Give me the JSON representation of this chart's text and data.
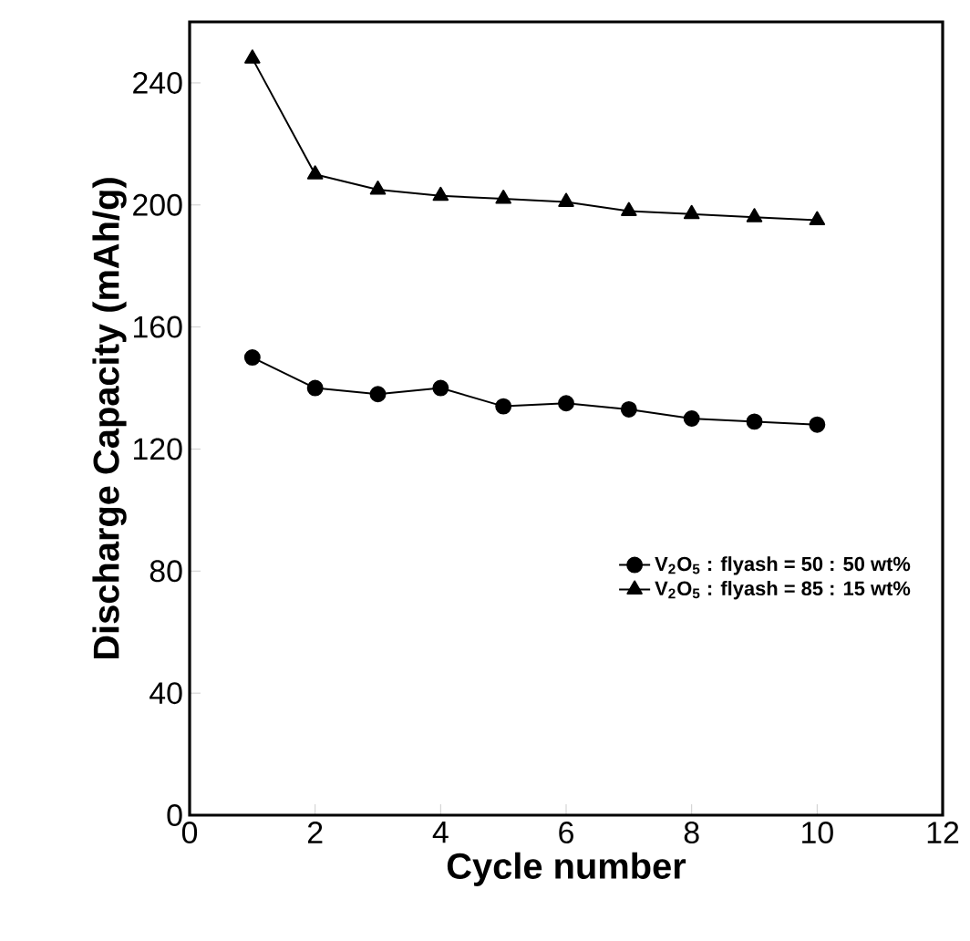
{
  "chart_data": {
    "type": "line",
    "xlabel": "Cycle number",
    "ylabel": "Discharge Capacity (mAh/g)",
    "x": [
      1,
      2,
      3,
      4,
      5,
      6,
      7,
      8,
      9,
      10
    ],
    "series": [
      {
        "name": "V$_{2}$O$_{5}$ : flyash = 50 : 50 wt%",
        "color": "#000000",
        "marker": "circle",
        "values": [
          150,
          140,
          138,
          140,
          134,
          135,
          133,
          130,
          129,
          128
        ]
      },
      {
        "name": "V$_{2}$O$_{5}$ : flyash = 85 : 15 wt%",
        "color": "#000000",
        "marker": "triangle",
        "values": [
          248,
          210,
          205,
          203,
          202,
          201,
          198,
          197,
          196,
          195
        ]
      }
    ],
    "xlim": [
      0,
      12
    ],
    "xticks": [
      0,
      2,
      4,
      6,
      8,
      10,
      12
    ],
    "ylim": [
      0,
      260
    ],
    "yticks": [
      0,
      40,
      80,
      120,
      160,
      200,
      240
    ],
    "legend": "right",
    "grid": false,
    "line_style": "solid"
  }
}
